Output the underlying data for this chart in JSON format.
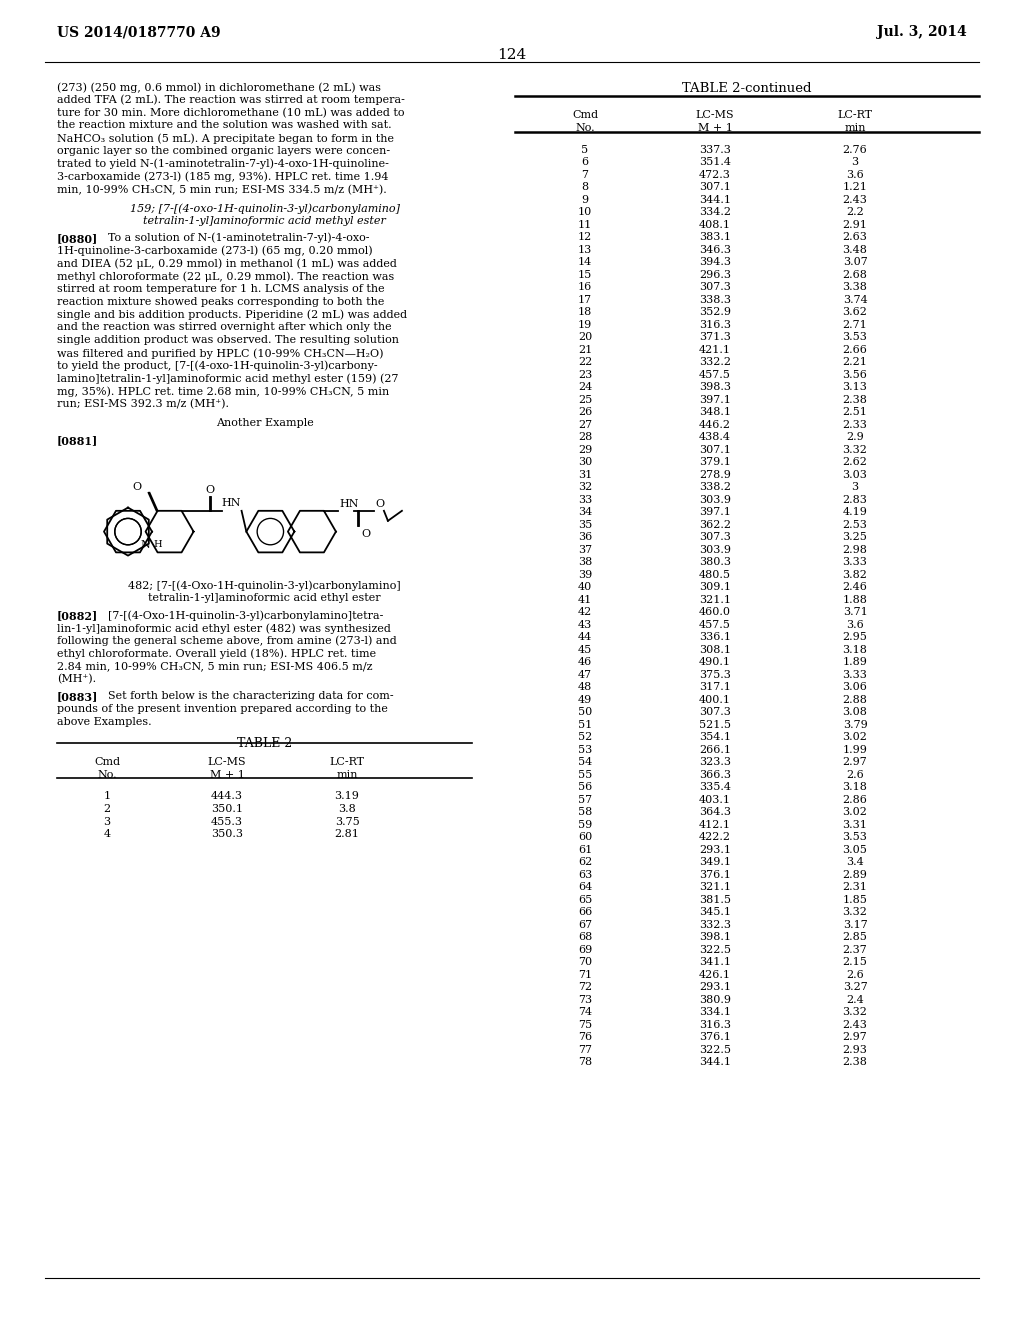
{
  "page_header_left": "US 2014/0187770 A9",
  "page_header_right": "Jul. 3, 2014",
  "page_number": "124",
  "table_title": "TABLE 2-continued",
  "table_data": [
    [
      1,
      "444.3",
      "3.19"
    ],
    [
      2,
      "350.1",
      "3.8"
    ],
    [
      3,
      "455.3",
      "3.75"
    ],
    [
      4,
      "350.3",
      "2.81"
    ],
    [
      5,
      "337.3",
      "2.76"
    ],
    [
      6,
      "351.4",
      "3"
    ],
    [
      7,
      "472.3",
      "3.6"
    ],
    [
      8,
      "307.1",
      "1.21"
    ],
    [
      9,
      "344.1",
      "2.43"
    ],
    [
      10,
      "334.2",
      "2.2"
    ],
    [
      11,
      "408.1",
      "2.91"
    ],
    [
      12,
      "383.1",
      "2.63"
    ],
    [
      13,
      "346.3",
      "3.48"
    ],
    [
      14,
      "394.3",
      "3.07"
    ],
    [
      15,
      "296.3",
      "2.68"
    ],
    [
      16,
      "307.3",
      "3.38"
    ],
    [
      17,
      "338.3",
      "3.74"
    ],
    [
      18,
      "352.9",
      "3.62"
    ],
    [
      19,
      "316.3",
      "2.71"
    ],
    [
      20,
      "371.3",
      "3.53"
    ],
    [
      21,
      "421.1",
      "2.66"
    ],
    [
      22,
      "332.2",
      "2.21"
    ],
    [
      23,
      "457.5",
      "3.56"
    ],
    [
      24,
      "398.3",
      "3.13"
    ],
    [
      25,
      "397.1",
      "2.38"
    ],
    [
      26,
      "348.1",
      "2.51"
    ],
    [
      27,
      "446.2",
      "2.33"
    ],
    [
      28,
      "438.4",
      "2.9"
    ],
    [
      29,
      "307.1",
      "3.32"
    ],
    [
      30,
      "379.1",
      "2.62"
    ],
    [
      31,
      "278.9",
      "3.03"
    ],
    [
      32,
      "338.2",
      "3"
    ],
    [
      33,
      "303.9",
      "2.83"
    ],
    [
      34,
      "397.1",
      "4.19"
    ],
    [
      35,
      "362.2",
      "2.53"
    ],
    [
      36,
      "307.3",
      "3.25"
    ],
    [
      37,
      "303.9",
      "2.98"
    ],
    [
      38,
      "380.3",
      "3.33"
    ],
    [
      39,
      "480.5",
      "3.82"
    ],
    [
      40,
      "309.1",
      "2.46"
    ],
    [
      41,
      "321.1",
      "1.88"
    ],
    [
      42,
      "460.0",
      "3.71"
    ],
    [
      43,
      "457.5",
      "3.6"
    ],
    [
      44,
      "336.1",
      "2.95"
    ],
    [
      45,
      "308.1",
      "3.18"
    ],
    [
      46,
      "490.1",
      "1.89"
    ],
    [
      47,
      "375.3",
      "3.33"
    ],
    [
      48,
      "317.1",
      "3.06"
    ],
    [
      49,
      "400.1",
      "2.88"
    ],
    [
      50,
      "307.3",
      "3.08"
    ],
    [
      51,
      "521.5",
      "3.79"
    ],
    [
      52,
      "354.1",
      "3.02"
    ],
    [
      53,
      "266.1",
      "1.99"
    ],
    [
      54,
      "323.3",
      "2.97"
    ],
    [
      55,
      "366.3",
      "2.6"
    ],
    [
      56,
      "335.4",
      "3.18"
    ],
    [
      57,
      "403.1",
      "2.86"
    ],
    [
      58,
      "364.3",
      "3.02"
    ],
    [
      59,
      "412.1",
      "3.31"
    ],
    [
      60,
      "422.2",
      "3.53"
    ],
    [
      61,
      "293.1",
      "3.05"
    ],
    [
      62,
      "349.1",
      "3.4"
    ],
    [
      63,
      "376.1",
      "2.89"
    ],
    [
      64,
      "321.1",
      "2.31"
    ],
    [
      65,
      "381.5",
      "1.85"
    ],
    [
      66,
      "345.1",
      "3.32"
    ],
    [
      67,
      "332.3",
      "3.17"
    ],
    [
      68,
      "398.1",
      "2.85"
    ],
    [
      69,
      "322.5",
      "2.37"
    ],
    [
      70,
      "341.1",
      "2.15"
    ],
    [
      71,
      "426.1",
      "2.6"
    ],
    [
      72,
      "293.1",
      "3.27"
    ],
    [
      73,
      "380.9",
      "2.4"
    ],
    [
      74,
      "334.1",
      "3.32"
    ],
    [
      75,
      "316.3",
      "2.43"
    ],
    [
      76,
      "376.1",
      "2.97"
    ],
    [
      77,
      "322.5",
      "2.93"
    ],
    [
      78,
      "344.1",
      "2.38"
    ]
  ],
  "left_para1_lines": [
    "(273) (250 mg, 0.6 mmol) in dichloromethane (2 mL) was",
    "added TFA (2 mL). The reaction was stirred at room tempera-",
    "ture for 30 min. More dichloromethane (10 mL) was added to",
    "the reaction mixture and the solution was washed with sat.",
    "NaHCO₃ solution (5 mL). A precipitate began to form in the",
    "organic layer so the combined organic layers were concen-",
    "trated to yield N-(1-aminotetralin-7-yl)-4-oxo-1H-quinoline-",
    "3-carboxamide (273-l) (185 mg, 93%). HPLC ret. time 1.94",
    "min, 10-99% CH₃CN, 5 min run; ESI-MS 334.5 m/z (MH⁺)."
  ],
  "section159_line1": "159; [7-[(4-oxo-1H-quinolin-3-yl)carbonylamino]",
  "section159_line2": "tetralin-1-yl]aminoformic acid methyl ester",
  "para0880_lines": [
    "[0880]   To a solution of N-(1-aminotetralin-7-yl)-4-oxo-",
    "1H-quinoline-3-carboxamide (273-l) (65 mg, 0.20 mmol)",
    "and DIEA (52 μL, 0.29 mmol) in methanol (1 mL) was added",
    "methyl chloroformate (22 μL, 0.29 mmol). The reaction was",
    "stirred at room temperature for 1 h. LCMS analysis of the",
    "reaction mixture showed peaks corresponding to both the",
    "single and bis addition products. Piperidine (2 mL) was added",
    "and the reaction was stirred overnight after which only the",
    "single addition product was observed. The resulting solution",
    "was filtered and purified by HPLC (10-99% CH₃CN—H₂O)",
    "to yield the product, [7-[(4-oxo-1H-quinolin-3-yl)carbony-",
    "lamino]tetralin-1-yl]aminoformic acid methyl ester (159) (27",
    "mg, 35%). HPLC ret. time 2.68 min, 10-99% CH₃CN, 5 min",
    "run; ESI-MS 392.3 m/z (MH⁺)."
  ],
  "another_example": "Another Example",
  "para0881": "[0881]",
  "compound482_line1": "482; [7-[(4-Oxo-1H-quinolin-3-yl)carbonylamino]",
  "compound482_line2": "tetralin-1-yl]aminoformic acid ethyl ester",
  "para0882_lines": [
    "[0882]   [7-[(4-Oxo-1H-quinolin-3-yl)carbonylamino]tetra-",
    "lin-1-yl]aminoformic acid ethyl ester (482) was synthesized",
    "following the general scheme above, from amine (273-l) and",
    "ethyl chloroformate. Overall yield (18%). HPLC ret. time",
    "2.84 min, 10-99% CH₃CN, 5 min run; ESI-MS 406.5 m/z",
    "(MH⁺)."
  ],
  "para0883_lines": [
    "[0883]   Set forth below is the characterizing data for com-",
    "pounds of the present invention prepared according to the",
    "above Examples."
  ],
  "table2_title": "TABLE 2",
  "table2_data": [
    [
      1,
      "444.3",
      "3.19"
    ],
    [
      2,
      "350.1",
      "3.8"
    ],
    [
      3,
      "455.3",
      "3.75"
    ],
    [
      4,
      "350.3",
      "2.81"
    ]
  ]
}
